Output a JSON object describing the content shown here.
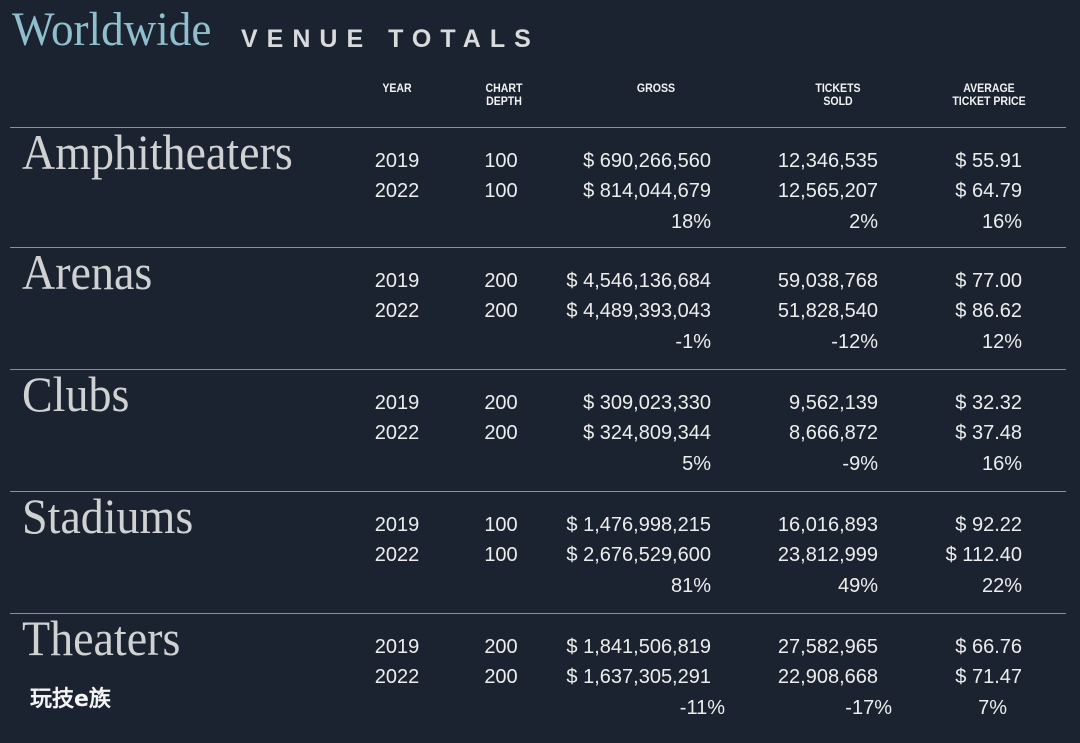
{
  "chart_data": {
    "type": "table",
    "title": "Worldwide",
    "subtitle": "VENUE TOTALS",
    "columns": {
      "year": [
        "YEAR"
      ],
      "chart_depth": [
        "CHART",
        "DEPTH"
      ],
      "gross": [
        "GROSS"
      ],
      "tickets_sold": [
        "TICKETS",
        "SOLD"
      ],
      "average_ticket_price": [
        "AVERAGE",
        "TICKET PRICE"
      ]
    },
    "groups": [
      {
        "venue": "Amphitheaters",
        "rows": [
          {
            "year": "2019",
            "chart_depth": "100",
            "gross": "$ 690,266,560",
            "tickets_sold": "12,346,535",
            "average_ticket_price": "$ 55.91"
          },
          {
            "year": "2022",
            "chart_depth": "100",
            "gross": "$ 814,044,679",
            "tickets_sold": "12,565,207",
            "average_ticket_price": "$ 64.79"
          }
        ],
        "change": {
          "gross": "18%",
          "tickets_sold": "2%",
          "average_ticket_price": "16%"
        }
      },
      {
        "venue": "Arenas",
        "rows": [
          {
            "year": "2019",
            "chart_depth": "200",
            "gross": "$ 4,546,136,684",
            "tickets_sold": "59,038,768",
            "average_ticket_price": "$ 77.00"
          },
          {
            "year": "2022",
            "chart_depth": "200",
            "gross": "$ 4,489,393,043",
            "tickets_sold": "51,828,540",
            "average_ticket_price": "$ 86.62"
          }
        ],
        "change": {
          "gross": "-1%",
          "tickets_sold": "-12%",
          "average_ticket_price": "12%"
        }
      },
      {
        "venue": "Clubs",
        "rows": [
          {
            "year": "2019",
            "chart_depth": "200",
            "gross": "$ 309,023,330",
            "tickets_sold": "9,562,139",
            "average_ticket_price": "$ 32.32"
          },
          {
            "year": "2022",
            "chart_depth": "200",
            "gross": "$ 324,809,344",
            "tickets_sold": "8,666,872",
            "average_ticket_price": "$ 37.48"
          }
        ],
        "change": {
          "gross": "5%",
          "tickets_sold": "-9%",
          "average_ticket_price": "16%"
        }
      },
      {
        "venue": "Stadiums",
        "rows": [
          {
            "year": "2019",
            "chart_depth": "100",
            "gross": "$ 1,476,998,215",
            "tickets_sold": "16,016,893",
            "average_ticket_price": "$ 92.22"
          },
          {
            "year": "2022",
            "chart_depth": "100",
            "gross": "$ 2,676,529,600",
            "tickets_sold": "23,812,999",
            "average_ticket_price": "$ 112.40"
          }
        ],
        "change": {
          "gross": "81%",
          "tickets_sold": "49%",
          "average_ticket_price": "22%"
        }
      },
      {
        "venue": "Theaters",
        "rows": [
          {
            "year": "2019",
            "chart_depth": "200",
            "gross": "$ 1,841,506,819",
            "tickets_sold": "27,582,965",
            "average_ticket_price": "$ 66.76"
          },
          {
            "year": "2022",
            "chart_depth": "200",
            "gross": "$ 1,637,305,291",
            "tickets_sold": "22,908,668",
            "average_ticket_price": "$ 71.47"
          }
        ],
        "change": {
          "gross": "-11%",
          "tickets_sold": "-17%",
          "average_ticket_price": "7%"
        }
      }
    ]
  },
  "watermark": "玩技e族",
  "colors": {
    "background": "#1c2330",
    "title_accent": "#8fbfce",
    "rule": "#7f939c",
    "text": "#ededed",
    "venue_text": "#d0d1d3"
  }
}
